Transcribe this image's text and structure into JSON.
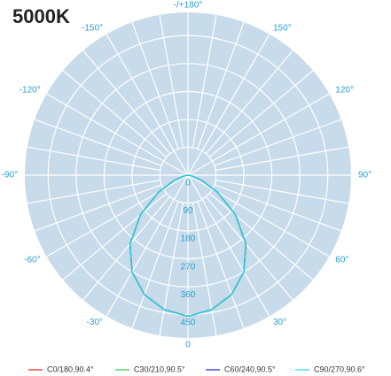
{
  "chart_data": {
    "type": "polar",
    "title": "5000K",
    "theta": [
      -90,
      -80,
      -70,
      -60,
      -50,
      -40,
      -30,
      -20,
      -10,
      0,
      10,
      20,
      30,
      40,
      50,
      60,
      70,
      80,
      90
    ],
    "series": [
      {
        "name": "C0/180,90.4°",
        "color": "#e02020",
        "values": [
          0,
          10,
          45,
          110,
          200,
          290,
          360,
          410,
          440,
          455,
          440,
          410,
          360,
          290,
          200,
          110,
          45,
          10,
          0
        ]
      },
      {
        "name": "C30/210,90.5°",
        "color": "#2ecc40",
        "values": [
          0,
          10,
          45,
          110,
          200,
          290,
          360,
          410,
          440,
          455,
          440,
          410,
          360,
          290,
          200,
          110,
          45,
          10,
          0
        ]
      },
      {
        "name": "C60/240,90.5°",
        "color": "#2020c0",
        "values": [
          0,
          10,
          45,
          110,
          200,
          290,
          360,
          410,
          440,
          455,
          440,
          410,
          360,
          290,
          200,
          110,
          45,
          10,
          0
        ]
      },
      {
        "name": "C90/270,90.6°",
        "color": "#22d8e0",
        "values": [
          0,
          10,
          45,
          110,
          200,
          290,
          360,
          410,
          440,
          455,
          440,
          410,
          360,
          290,
          200,
          110,
          45,
          10,
          0
        ]
      }
    ],
    "rlim": [
      0,
      525
    ],
    "rticks": [
      0,
      90,
      180,
      270,
      360,
      450
    ],
    "thetaticks": [
      0,
      {
        "value": 30,
        "label": "30°"
      },
      {
        "value": 60,
        "label": "60°"
      },
      {
        "value": 90,
        "label": "90°"
      },
      {
        "value": 120,
        "label": "120°"
      },
      {
        "value": 150,
        "label": "150°"
      },
      {
        "value": 180,
        "label": "-/+180°"
      },
      {
        "value": -150,
        "label": "-150°"
      },
      {
        "value": -120,
        "label": "-120°"
      },
      {
        "value": -90,
        "label": "-90°"
      },
      {
        "value": -60,
        "label": "-60°"
      },
      {
        "value": -30,
        "label": "-30°"
      }
    ],
    "grid": true
  }
}
